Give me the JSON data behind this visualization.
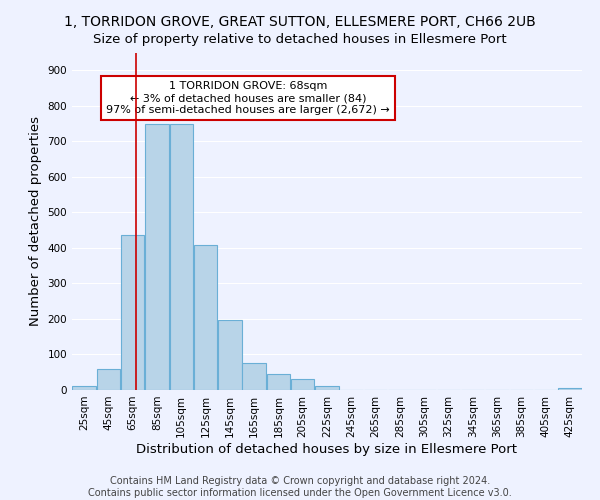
{
  "title": "1, TORRIDON GROVE, GREAT SUTTON, ELLESMERE PORT, CH66 2UB",
  "subtitle": "Size of property relative to detached houses in Ellesmere Port",
  "xlabel": "Distribution of detached houses by size in Ellesmere Port",
  "ylabel": "Number of detached properties",
  "bin_labels": [
    "25sqm",
    "45sqm",
    "65sqm",
    "85sqm",
    "105sqm",
    "125sqm",
    "145sqm",
    "165sqm",
    "185sqm",
    "205sqm",
    "225sqm",
    "245sqm",
    "265sqm",
    "285sqm",
    "305sqm",
    "325sqm",
    "345sqm",
    "365sqm",
    "385sqm",
    "405sqm",
    "425sqm"
  ],
  "bin_left_edges": [
    15,
    35,
    55,
    75,
    95,
    115,
    135,
    155,
    175,
    195,
    215,
    235,
    255,
    275,
    295,
    315,
    335,
    355,
    375,
    395,
    415
  ],
  "bar_heights": [
    10,
    58,
    435,
    750,
    750,
    408,
    198,
    75,
    45,
    30,
    12,
    0,
    0,
    0,
    0,
    0,
    0,
    0,
    0,
    0,
    5
  ],
  "bar_color": "#B8D4E8",
  "bar_edge_color": "#6AAFD6",
  "property_size": 68,
  "vline_color": "#CC0000",
  "annotation_line1": "1 TORRIDON GROVE: 68sqm",
  "annotation_line2": "← 3% of detached houses are smaller (84)",
  "annotation_line3": "97% of semi-detached houses are larger (2,672) →",
  "annotation_box_color": "#FFFFFF",
  "annotation_box_edge_color": "#CC0000",
  "ylim": [
    0,
    950
  ],
  "yticks": [
    0,
    100,
    200,
    300,
    400,
    500,
    600,
    700,
    800,
    900
  ],
  "footer_line1": "Contains HM Land Registry data © Crown copyright and database right 2024.",
  "footer_line2": "Contains public sector information licensed under the Open Government Licence v3.0.",
  "background_color": "#EEF2FF",
  "grid_color": "#FFFFFF",
  "title_fontsize": 10,
  "axis_label_fontsize": 9.5,
  "tick_fontsize": 7.5,
  "footer_fontsize": 7
}
